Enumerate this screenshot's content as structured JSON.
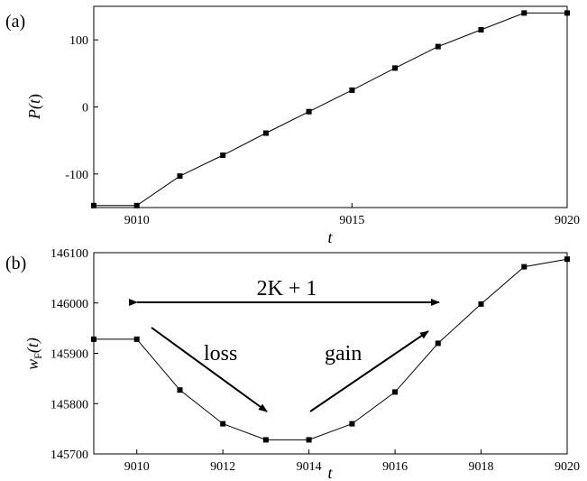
{
  "chart_data": [
    {
      "panel_label": "(a)",
      "type": "line",
      "marker": "square",
      "xlabel": "t",
      "ylabel": "P(t)",
      "ylabel_main": "P(",
      "ylabel_var": "t",
      "ylabel_close": ")",
      "xlim": [
        9009,
        9020
      ],
      "ylim": [
        -150,
        150
      ],
      "xticks": [
        9010,
        9015,
        9020
      ],
      "yticks": [
        100,
        0,
        -100
      ],
      "x": [
        9009,
        9010,
        9011,
        9012,
        9013,
        9014,
        9015,
        9016,
        9017,
        9018,
        9019,
        9020
      ],
      "y": [
        -147,
        -147,
        -103,
        -72,
        -39,
        -7,
        25,
        58,
        90,
        115,
        140,
        140
      ]
    },
    {
      "panel_label": "(b)",
      "type": "line",
      "marker": "square",
      "xlabel": "t",
      "ylabel": "wF(t)",
      "ylabel_main": "w",
      "ylabel_sub": "F",
      "ylabel_tail": "(t)",
      "xlim": [
        9009,
        9020
      ],
      "ylim": [
        145700,
        146100
      ],
      "xticks": [
        9010,
        9012,
        9014,
        9016,
        9018,
        9020
      ],
      "yticks": [
        146100,
        146000,
        145900,
        145800,
        145700
      ],
      "x": [
        9009,
        9010,
        9011,
        9012,
        9013,
        9014,
        9015,
        9016,
        9017,
        9018,
        9019,
        9020
      ],
      "y": [
        145928,
        145928,
        145827,
        145760,
        145728,
        145728,
        145760,
        145823,
        145920,
        145998,
        146072,
        146087
      ],
      "annotations": {
        "span_label": "2K + 1",
        "loss_label": "loss",
        "gain_label": "gain"
      }
    }
  ]
}
